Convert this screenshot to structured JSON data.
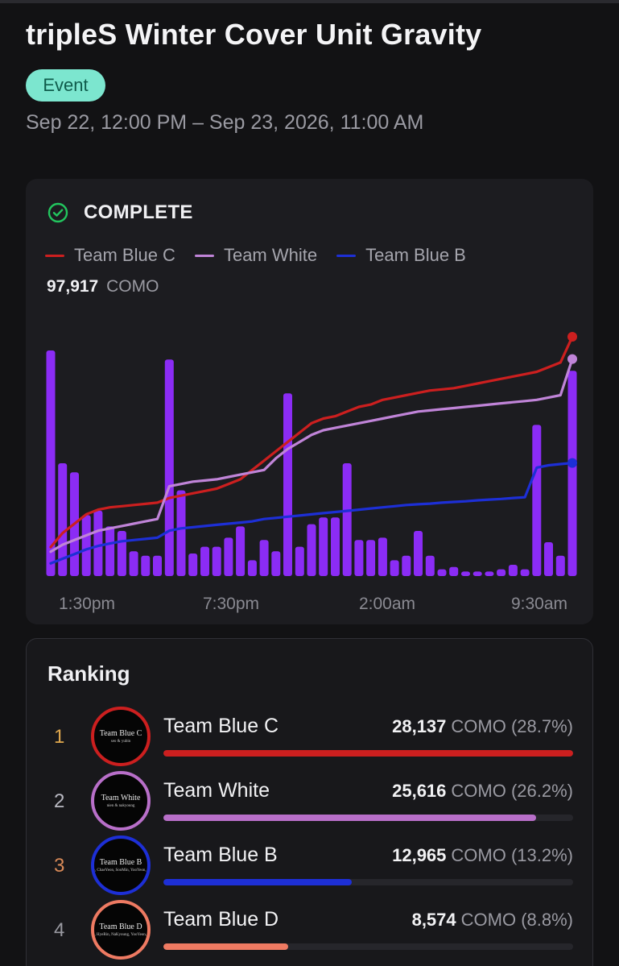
{
  "event": {
    "title": "tripleS Winter Cover Unit Gravity",
    "badge": "Event",
    "date_range": "Sep 22, 12:00 PM – Sep 23, 2026, 11:00 AM",
    "badge_color": "#7ce6cf"
  },
  "status": {
    "label": "COMPLETE",
    "icon": "check-circle-icon",
    "icon_color": "#22c55e"
  },
  "legend": [
    {
      "label": "Team Blue C",
      "color": "#cc1f1f"
    },
    {
      "label": "Team White",
      "color": "#c084d8"
    },
    {
      "label": "Team Blue B",
      "color": "#1d2fd6"
    }
  ],
  "total": {
    "value": "97,917",
    "unit": "COMO"
  },
  "chart_data": {
    "type": "bar",
    "x_tick_labels": [
      "1:30pm",
      "7:30pm",
      "2:00am",
      "9:30am"
    ],
    "bar_color": "#8b2cf5",
    "bars": [
      100,
      50,
      46,
      27,
      29,
      22,
      20,
      11,
      9,
      9,
      96,
      38,
      10,
      13,
      13,
      17,
      22,
      7,
      16,
      11,
      81,
      13,
      23,
      26,
      26,
      50,
      16,
      16,
      17,
      7,
      9,
      20,
      9,
      3,
      4,
      2,
      2,
      2,
      3,
      5,
      3,
      67,
      15,
      9,
      91
    ],
    "series": [
      {
        "name": "Team Blue C",
        "color": "#cc1f1f",
        "values": [
          10,
          16,
          20,
          24,
          26,
          27,
          27.5,
          28,
          28.5,
          29,
          31,
          32,
          33,
          34,
          35,
          37,
          39,
          43,
          47,
          51,
          55,
          59,
          63,
          65,
          66,
          68,
          70,
          71,
          73,
          74,
          75,
          76,
          77,
          77.5,
          78,
          79,
          80,
          81,
          82,
          83,
          84,
          85,
          87,
          89,
          100
        ]
      },
      {
        "name": "Team White",
        "color": "#c084d8",
        "values": [
          8,
          11,
          13,
          15,
          17,
          18,
          19,
          20,
          21,
          22,
          36,
          37,
          38,
          38.5,
          39,
          40,
          41,
          42,
          43,
          48,
          52,
          55,
          58,
          60,
          61,
          62,
          63,
          64,
          65,
          66,
          67,
          68,
          68.5,
          69,
          69.5,
          70,
          70.5,
          71,
          71.5,
          72,
          72.5,
          73,
          74,
          75,
          90.5
        ]
      },
      {
        "name": "Team Blue B",
        "color": "#1d2fd6",
        "values": [
          3,
          5,
          7,
          9,
          10.5,
          11.5,
          12.5,
          13,
          13.5,
          14,
          17,
          18,
          18.5,
          19,
          19.5,
          20,
          20.5,
          21,
          22,
          22.5,
          23,
          23.5,
          24,
          24.5,
          25,
          25.5,
          26,
          26.5,
          27,
          27.5,
          28,
          28.3,
          28.6,
          29,
          29.3,
          29.6,
          30,
          30.3,
          30.6,
          31,
          31.3,
          44,
          45,
          45.5,
          46
        ]
      }
    ]
  },
  "ranking": {
    "title": "Ranking",
    "unit": "COMO",
    "rows": [
      {
        "rank": "1",
        "name": "Team Blue C",
        "value": "28,137",
        "pct": "(28.7%)",
        "fraction": 1.0,
        "color": "#cc1f1f",
        "rank_color": "#e0a84e",
        "avatar_line1": "Team Blue C",
        "avatar_line2": "seo & yubin"
      },
      {
        "rank": "2",
        "name": "Team White",
        "value": "25,616",
        "pct": "(26.2%)",
        "fraction": 0.91,
        "color": "#b86fc9",
        "rank_color": "#b9b9c2",
        "avatar_line1": "Team White",
        "avatar_line2": "nien & nakyoung"
      },
      {
        "rank": "3",
        "name": "Team Blue B",
        "value": "12,965",
        "pct": "(13.2%)",
        "fraction": 0.46,
        "color": "#1d2fd6",
        "rank_color": "#d98a58",
        "avatar_line1": "Team Blue B",
        "avatar_line2": "SeoYeon, JiWoo, ChaeYeon, SooMin, YooYeon, Kaede, DaHyun"
      },
      {
        "rank": "4",
        "name": "Team Blue D",
        "value": "8,574",
        "pct": "(8.8%)",
        "fraction": 0.305,
        "color": "#ee7a62",
        "rank_color": "#9a9aa2",
        "avatar_line1": "Team Blue D",
        "avatar_line2": "SeoAh, HyeRin, NaKyoung, YooYeon, ShiOn"
      }
    ]
  }
}
